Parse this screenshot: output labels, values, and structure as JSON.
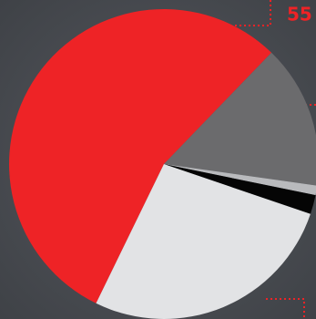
{
  "chart_data": {
    "type": "pie",
    "values": [
      55,
      15,
      1,
      2,
      27
    ],
    "value_labels": [
      "55",
      null,
      null,
      null,
      null
    ],
    "colors": [
      "#ee2326",
      "#6b6b6d",
      "#b9babd",
      "#050505",
      "#e2e3e5"
    ],
    "start_angle": -154
  }
}
